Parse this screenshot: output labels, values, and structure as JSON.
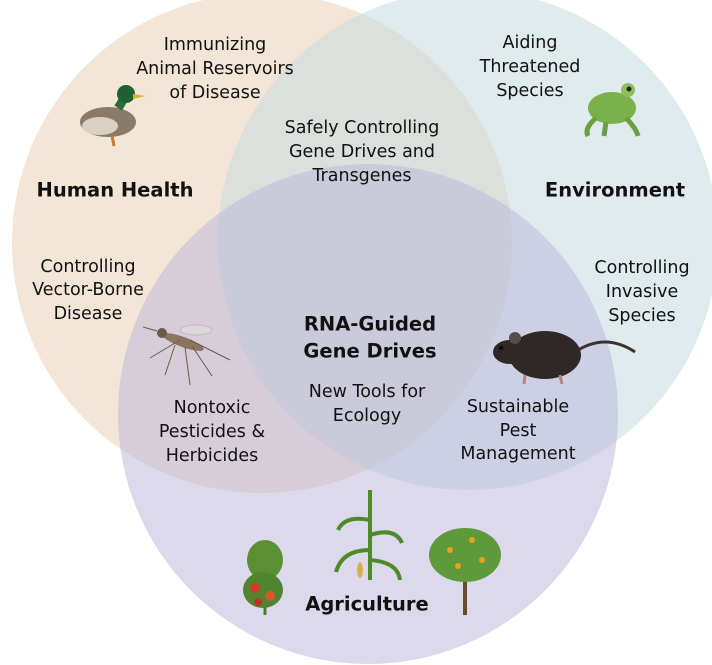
{
  "sets": [
    {
      "label": "Human Health"
    },
    {
      "label": "Environment"
    },
    {
      "label": "Agriculture"
    }
  ],
  "regions": {
    "human_health": [
      "Immunizing",
      "Animal Reservoirs",
      "of Disease"
    ],
    "environment": [
      "Aiding",
      "Threatened",
      "Species"
    ],
    "health_environment": [
      "Safely Controlling",
      "Gene Drives and",
      "Transgenes"
    ],
    "health_only": [
      "Controlling",
      "Vector-Borne",
      "Disease"
    ],
    "environment_only": [
      "Controlling",
      "Invasive",
      "Species"
    ],
    "health_agriculture": [
      "Nontoxic",
      "Pesticides &",
      "Herbicides"
    ],
    "environment_agriculture": [
      "Sustainable",
      "Pest",
      "Management"
    ]
  },
  "center": {
    "title": [
      "RNA-Guided",
      "Gene Drives"
    ],
    "subtitle": [
      "New Tools for",
      "Ecology"
    ]
  }
}
